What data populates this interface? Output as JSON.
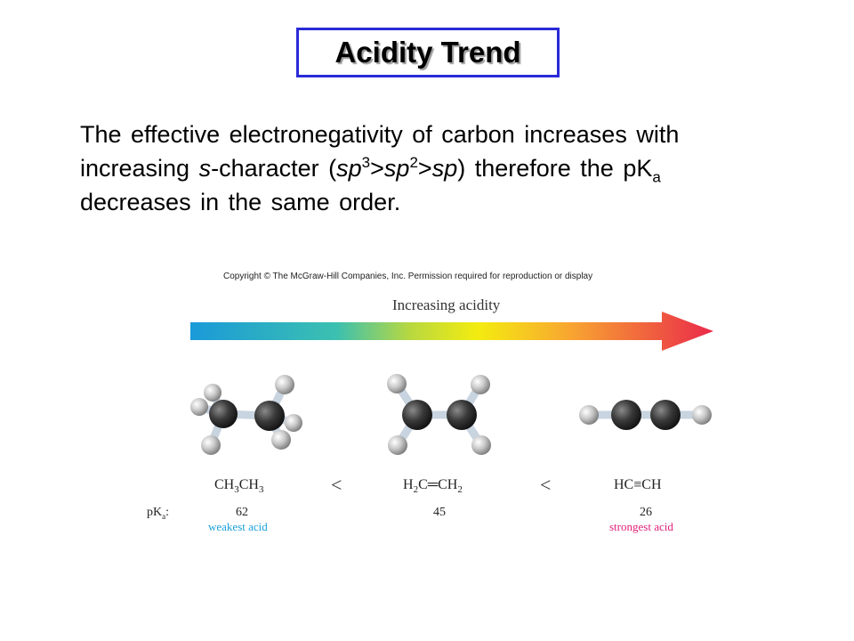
{
  "title": "Acidity Trend",
  "body": {
    "line1": "The effective electronegativity of carbon increases with",
    "line2_a": "increasing ",
    "line2_s": "s",
    "line2_b": "-character (",
    "line2_sp3": "sp",
    "line2_sup3": "3",
    "line2_gt1": ">",
    "line2_sp2": "sp",
    "line2_sup2": "2",
    "line2_gt2": ">",
    "line2_sp": "sp",
    "line2_c": ") therefore the pK",
    "line2_sub_a": "a",
    "line3": "decreases in the same order."
  },
  "figure": {
    "copyright": "Copyright © The McGraw-Hill Companies, Inc. Permission required for reproduction or display",
    "arrow_label": "Increasing acidity",
    "pka_label": "pK",
    "pka_sub": "a",
    "pka_colon": ":",
    "less_than": "<",
    "molecules": [
      {
        "formula_parts": [
          "CH",
          "3",
          "CH",
          "3"
        ],
        "pka": "62",
        "note": "weakest acid"
      },
      {
        "formula_parts": [
          "H",
          "2",
          "C",
          "═",
          "CH",
          "2"
        ],
        "pka": "45",
        "note": ""
      },
      {
        "formula_parts": [
          "HC",
          "≡",
          "CH"
        ],
        "pka": "26",
        "note": "strongest acid"
      }
    ],
    "colors": {
      "weak_acid": "#1aa0d8",
      "strong_acid": "#e0207a",
      "title_border": "#2a2ad8"
    }
  }
}
